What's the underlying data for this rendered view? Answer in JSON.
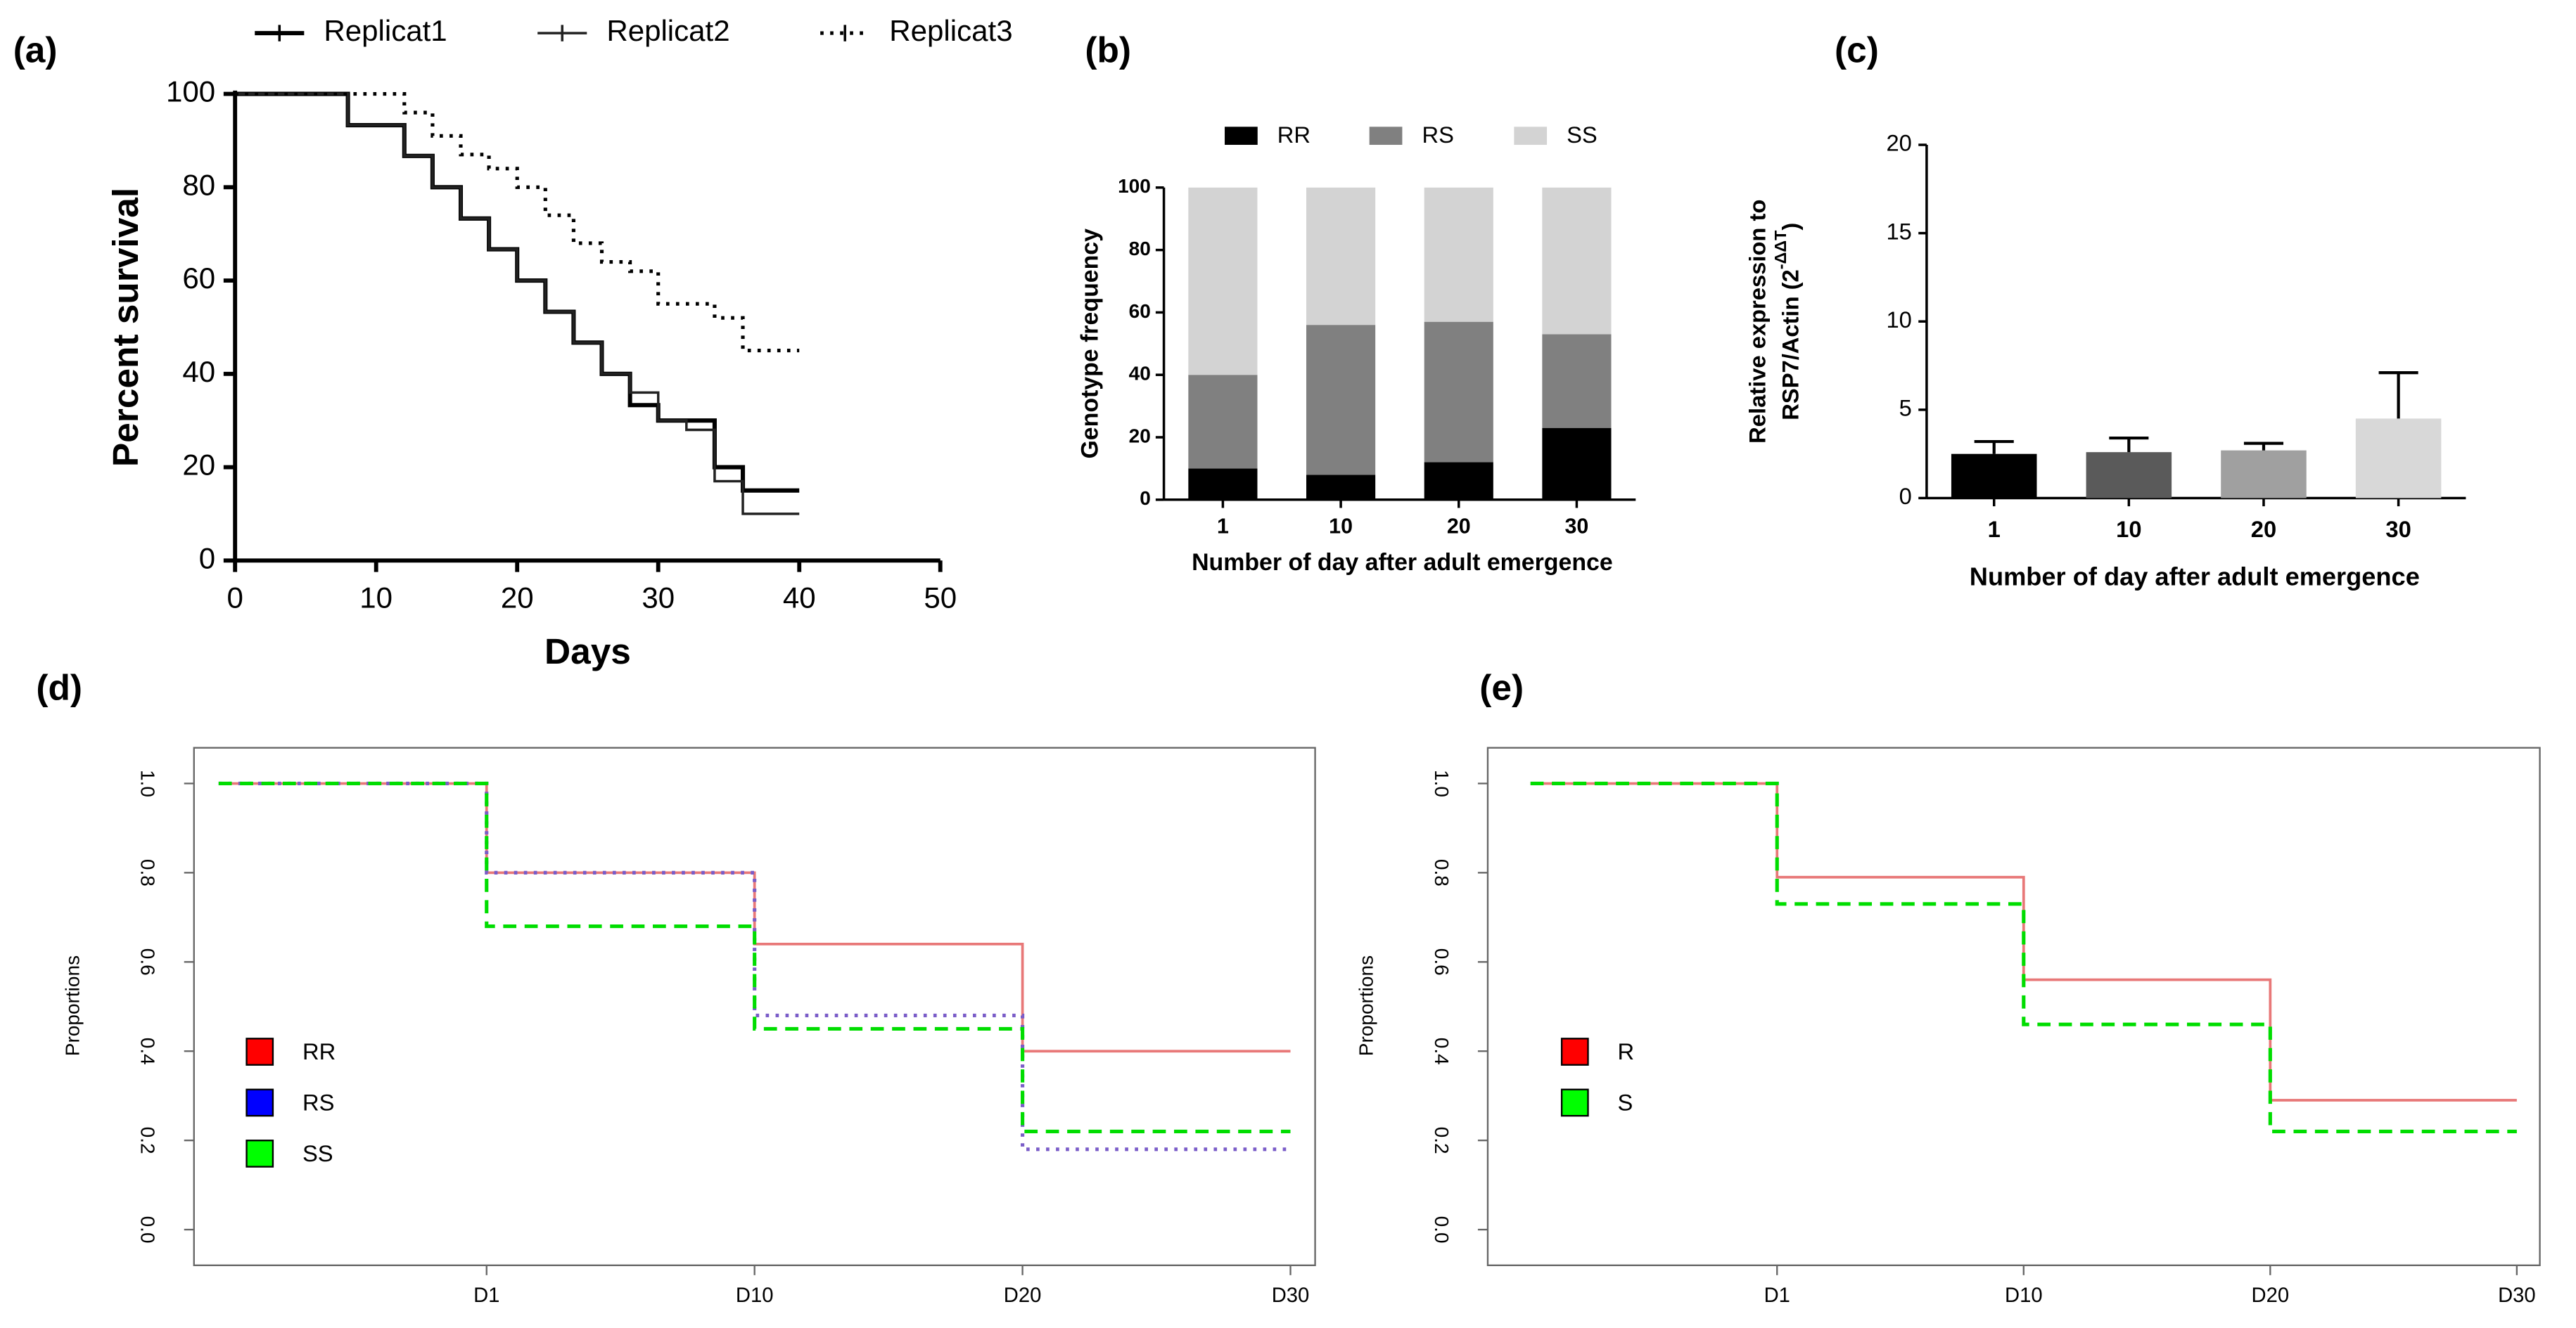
{
  "chart_data": [
    {
      "type": "step",
      "panel": "(a)",
      "xlabel": "Days",
      "ylabel": "Percent survival",
      "xlim": [
        0,
        50
      ],
      "xticks": [
        0,
        10,
        20,
        30,
        40,
        50
      ],
      "ylim": [
        0,
        100
      ],
      "yticks": [
        0,
        20,
        40,
        60,
        80,
        100
      ],
      "series": [
        {
          "name": "Replicat1",
          "color": "#000000",
          "line_style": "solid",
          "x": [
            0,
            8,
            12,
            14,
            16,
            18,
            20,
            22,
            24,
            26,
            28,
            30,
            34,
            36,
            40
          ],
          "values": [
            100,
            93.3,
            86.7,
            80,
            73.3,
            66.7,
            60,
            53.3,
            46.7,
            40,
            33.3,
            30,
            20,
            15,
            15
          ]
        },
        {
          "name": "Replicat2",
          "color": "#222222",
          "line_style": "thin",
          "x": [
            0,
            8,
            12,
            14,
            16,
            18,
            20,
            22,
            24,
            26,
            28,
            30,
            32,
            34,
            36,
            40
          ],
          "values": [
            100,
            93.3,
            86.7,
            80,
            73.3,
            66.7,
            60,
            53.3,
            46.7,
            40,
            36,
            30,
            28,
            17,
            10,
            10
          ]
        },
        {
          "name": "Replicat3",
          "color": "#000000",
          "line_style": "dotted",
          "x": [
            0,
            8,
            12,
            14,
            16,
            18,
            20,
            22,
            24,
            26,
            28,
            30,
            32,
            34,
            36,
            40
          ],
          "values": [
            100,
            100,
            96,
            91,
            87,
            84,
            80,
            74,
            68,
            64,
            62,
            55,
            55,
            52,
            45,
            45
          ]
        }
      ]
    },
    {
      "type": "stacked",
      "panel": "(b)",
      "xlabel": "Number of day after adult emergence",
      "ylabel": "Genotype frequency",
      "categories": [
        "1",
        "10",
        "20",
        "30"
      ],
      "ylim": [
        0,
        100
      ],
      "yticks": [
        0,
        20,
        40,
        60,
        80,
        100
      ],
      "series": [
        {
          "name": "RR",
          "color": "#000000",
          "values": [
            10,
            8,
            12,
            23
          ]
        },
        {
          "name": "RS",
          "color": "#808080",
          "values": [
            30,
            48,
            45,
            30
          ]
        },
        {
          "name": "SS",
          "color": "#d3d3d3",
          "values": [
            60,
            44,
            43,
            47
          ]
        }
      ]
    },
    {
      "type": "bar",
      "panel": "(c)",
      "xlabel": "Number of day after adult emergence",
      "ylabel": [
        "Relative expression to",
        "RSP7/Actin (2"
      ],
      "ylabel_sup": "-ΔΔT",
      "ylabel_end": ")",
      "categories": [
        "1",
        "10",
        "20",
        "30"
      ],
      "values": [
        2.5,
        2.6,
        2.7,
        4.5
      ],
      "errors": [
        0.7,
        0.8,
        0.4,
        2.6
      ],
      "colors": [
        "#000000",
        "#5a5a5a",
        "#a0a0a0",
        "#d8d8d8"
      ],
      "ylim": [
        0,
        20
      ],
      "yticks": [
        0,
        5,
        10,
        15,
        20
      ]
    },
    {
      "type": "survival",
      "panel": "(d)",
      "ylabel": "Proportions",
      "categories": [
        null,
        "D1",
        "D10",
        "D20",
        "D30"
      ],
      "ylim": [
        -0.08,
        1.08
      ],
      "yticks": [
        {
          "value": 0,
          "label": "0.0"
        },
        0.2,
        0.4,
        0.6,
        0.8,
        {
          "value": 1,
          "label": "1.0"
        }
      ],
      "series": [
        {
          "name": "RR",
          "color": "#ff0000",
          "line_color": "#e87878",
          "line_style": "solid",
          "values": [
            1,
            0.8,
            0.64,
            0.4,
            0.4
          ]
        },
        {
          "name": "RS",
          "color": "#0000ff",
          "line_color": "#7a5cc8",
          "line_style": "dotted",
          "values": [
            1,
            0.8,
            0.48,
            0.18,
            0.18
          ]
        },
        {
          "name": "SS",
          "color": "#00ff00",
          "line_color": "#00dd00",
          "line_style": "dashed",
          "values": [
            1,
            0.68,
            0.45,
            0.22,
            0.22
          ]
        }
      ]
    },
    {
      "type": "survival",
      "panel": "(e)",
      "ylabel": "Proportions",
      "categories": [
        null,
        "D1",
        "D10",
        "D20",
        "D30"
      ],
      "ylim": [
        -0.08,
        1.08
      ],
      "yticks": [
        {
          "value": 0,
          "label": "0.0"
        },
        0.2,
        0.4,
        0.6,
        0.8,
        {
          "value": 1,
          "label": "1.0"
        }
      ],
      "series": [
        {
          "name": "R",
          "color": "#ff0000",
          "line_color": "#e87878",
          "line_style": "solid",
          "values": [
            1,
            0.79,
            0.56,
            0.29,
            0.29
          ]
        },
        {
          "name": "S",
          "color": "#00ff00",
          "line_color": "#00dd00",
          "line_style": "dashed",
          "values": [
            1,
            0.73,
            0.46,
            0.22,
            0.22
          ]
        }
      ]
    }
  ]
}
